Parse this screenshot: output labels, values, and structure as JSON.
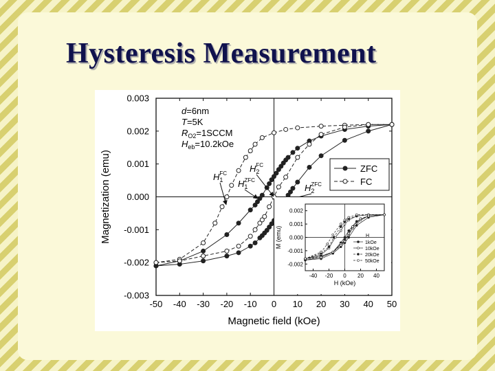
{
  "slide": {
    "title": "Hysteresis Measurement"
  },
  "colors": {
    "title": "#10124d",
    "background_stripe_light": "#f6f3c7",
    "background_stripe_dark": "#d8d070",
    "panel": "#fbf9d9",
    "series": "#222222"
  },
  "chart_data": [
    {
      "type": "line",
      "xlabel": "Magnetic field (kOe)",
      "ylabel": "Magnetization (emu)",
      "xlim": [
        -50,
        50
      ],
      "ylim": [
        -0.003,
        0.003
      ],
      "x_ticks": [
        "-50",
        "-40",
        "-30",
        "-20",
        "-10",
        "0",
        "10",
        "20",
        "30",
        "40",
        "50"
      ],
      "y_ticks": [
        "0.003",
        "0.002",
        "0.001",
        "0.000",
        "-0.001",
        "-0.002",
        "-0.003"
      ],
      "legend_placement": "right",
      "parameters": [
        {
          "text": "d=6nm",
          "label": "d",
          "value": "=6nm"
        },
        {
          "text": "T=5K",
          "label": "T",
          "value": "=5K"
        },
        {
          "text": "RO2=1SCCM",
          "label": "R",
          "sub": "O2",
          "value": "=1SCCM"
        },
        {
          "text": "Heb=10.2kOe",
          "label": "H",
          "sub": "eb",
          "value": "=10.2kOe"
        }
      ],
      "annotations": [
        {
          "text": "H1FC",
          "base": "H",
          "sub": "1",
          "sup": "FC",
          "x": -20
        },
        {
          "text": "H1ZFC",
          "base": "H",
          "sub": "1",
          "sup": "ZFC",
          "x": -5
        },
        {
          "text": "H2FC",
          "base": "H",
          "sub": "2",
          "sup": "FC",
          "x": 0
        },
        {
          "text": "H2ZFC",
          "base": "H",
          "sub": "2",
          "sup": "ZFC",
          "x": 5
        }
      ],
      "series": [
        {
          "name": "ZFC",
          "style": "solid-filled-circles",
          "branches": [
            {
              "x": [
                50,
                40,
                30,
                20,
                15,
                10,
                8,
                6,
                5,
                4,
                3,
                2,
                1,
                0,
                -1,
                -2,
                -3,
                -5,
                -6,
                -7,
                -8,
                -10,
                -15,
                -20,
                -30,
                -40,
                -50
              ],
              "y": [
                0.0022,
                0.00215,
                0.00205,
                0.00185,
                0.0017,
                0.00148,
                0.00135,
                0.0012,
                0.00112,
                0.00103,
                0.00093,
                0.00083,
                0.00072,
                0.00062,
                0.00052,
                0.0004,
                0.00028,
                5e-05,
                -5e-05,
                -0.00015,
                -0.00025,
                -0.0004,
                -0.0008,
                -0.00115,
                -0.00165,
                -0.00195,
                -0.0021
              ]
            },
            {
              "x": [
                -50,
                -40,
                -30,
                -20,
                -15,
                -10,
                -8,
                -6,
                -5,
                -4,
                -3,
                -2,
                -1,
                0,
                1,
                2,
                3,
                5,
                6,
                7,
                8,
                10,
                15,
                20,
                30,
                40,
                50
              ],
              "y": [
                -0.0021,
                -0.00205,
                -0.00195,
                -0.0018,
                -0.0017,
                -0.0015,
                -0.0014,
                -0.00125,
                -0.00118,
                -0.0011,
                -0.00102,
                -0.00092,
                -0.00082,
                -0.00072,
                -0.0006,
                -0.00048,
                -0.00035,
                -8e-05,
                5e-05,
                0.00015,
                0.00026,
                0.00045,
                0.0009,
                0.00125,
                0.00172,
                0.002,
                0.0022
              ]
            }
          ]
        },
        {
          "name": "FC",
          "style": "dashed-open-circles",
          "branches": [
            {
              "x": [
                50,
                40,
                30,
                20,
                10,
                5,
                0,
                -5,
                -8,
                -10,
                -12,
                -15,
                -18,
                -20,
                -22,
                -25,
                -30,
                -40,
                -50
              ],
              "y": [
                0.0022,
                0.0022,
                0.00218,
                0.00215,
                0.0021,
                0.00205,
                0.00195,
                0.0018,
                0.0016,
                0.0014,
                0.0012,
                0.0008,
                0.00035,
                0.0,
                -0.0003,
                -0.0008,
                -0.0014,
                -0.0019,
                -0.002
              ]
            },
            {
              "x": [
                -50,
                -40,
                -30,
                -20,
                -15,
                -10,
                -8,
                -6,
                -5,
                -4,
                -2,
                0,
                2,
                5,
                10,
                15,
                20,
                30,
                40,
                50
              ],
              "y": [
                -0.002,
                -0.00195,
                -0.0018,
                -0.00165,
                -0.0015,
                -0.0012,
                -0.001,
                -0.0008,
                -0.0007,
                -0.0006,
                -0.0003,
                0.0,
                0.0003,
                0.0006,
                0.0012,
                0.0016,
                0.0019,
                0.00212,
                0.0022,
                0.0022
              ]
            }
          ]
        }
      ]
    },
    {
      "type": "line",
      "xlabel": "H (kOe)",
      "ylabel": "M (emu)",
      "xlim": [
        -50,
        50
      ],
      "ylim": [
        -0.0025,
        0.0025
      ],
      "x_ticks": [
        "-40",
        "-20",
        "0",
        "20",
        "40"
      ],
      "y_ticks": [
        "0.002",
        "0.001",
        "0.000",
        "-0.001",
        "-0.002"
      ],
      "legend_title": "H",
      "legend_placement": "bottom-right",
      "series": [
        {
          "name": "1kOe",
          "branches": [
            {
              "x": [
                50,
                30,
                15,
                5,
                0,
                -5,
                -15,
                -30,
                -50
              ],
              "y": [
                0.0017,
                0.0016,
                0.0012,
                0.0005,
                0.0,
                -0.0004,
                -0.0011,
                -0.0015,
                -0.0017
              ]
            },
            {
              "x": [
                -50,
                -30,
                -15,
                -5,
                0,
                5,
                15,
                30,
                50
              ],
              "y": [
                -0.0017,
                -0.0016,
                -0.0012,
                -0.0007,
                -0.0004,
                0.0,
                0.0009,
                0.0015,
                0.0017
              ]
            }
          ]
        },
        {
          "name": "10kOe",
          "branches": [
            {
              "x": [
                50,
                30,
                15,
                5,
                0,
                -5,
                -12,
                -20,
                -30,
                -50
              ],
              "y": [
                0.0017,
                0.0017,
                0.0016,
                0.0013,
                0.001,
                0.0005,
                0.0,
                -0.0008,
                -0.0013,
                -0.0016
              ]
            },
            {
              "x": [
                -50,
                -30,
                -15,
                -5,
                0,
                5,
                10,
                20,
                30,
                50
              ],
              "y": [
                -0.0016,
                -0.0014,
                -0.0011,
                -0.0005,
                -0.0002,
                0.0002,
                0.0007,
                0.0013,
                0.0016,
                0.0017
              ]
            }
          ]
        },
        {
          "name": "20kOe",
          "branches": [
            {
              "x": [
                50,
                30,
                15,
                5,
                0,
                -5,
                -14,
                -20,
                -30,
                -50
              ],
              "y": [
                0.0017,
                0.0017,
                0.0016,
                0.0014,
                0.0012,
                0.0008,
                0.0,
                -0.0007,
                -0.0012,
                -0.0016
              ]
            },
            {
              "x": [
                -50,
                -30,
                -15,
                -5,
                0,
                5,
                10,
                20,
                30,
                50
              ],
              "y": [
                -0.0016,
                -0.0014,
                -0.0011,
                -0.0006,
                -0.0002,
                0.0003,
                0.0008,
                0.0014,
                0.0016,
                0.0017
              ]
            }
          ]
        },
        {
          "name": "50kOe",
          "branches": [
            {
              "x": [
                50,
                30,
                15,
                5,
                0,
                -5,
                -15,
                -22,
                -30,
                -50
              ],
              "y": [
                0.0017,
                0.0017,
                0.0017,
                0.0015,
                0.0013,
                0.001,
                0.0002,
                -0.0005,
                -0.0011,
                -0.0016
              ]
            },
            {
              "x": [
                -50,
                -30,
                -15,
                -5,
                0,
                5,
                10,
                20,
                30,
                50
              ],
              "y": [
                -0.0016,
                -0.0015,
                -0.0011,
                -0.0006,
                -0.0003,
                0.0003,
                0.0008,
                0.0014,
                0.0016,
                0.0017
              ]
            }
          ]
        }
      ]
    }
  ]
}
